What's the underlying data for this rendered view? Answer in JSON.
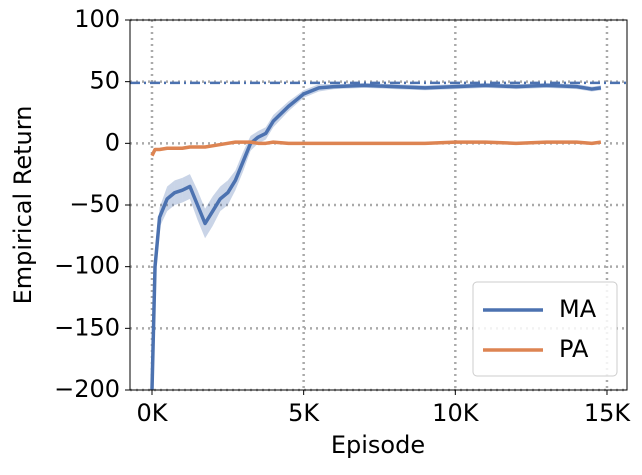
{
  "chart_data": {
    "type": "line",
    "xlabel": "Episode",
    "ylabel": "Empirical Return",
    "x": [
      0,
      100,
      250,
      500,
      750,
      1000,
      1250,
      1500,
      1750,
      2000,
      2250,
      2500,
      2750,
      3000,
      3250,
      3500,
      3750,
      4000,
      4500,
      5000,
      5500,
      6000,
      7000,
      8000,
      9000,
      10000,
      11000,
      12000,
      13000,
      14000,
      14500,
      14800
    ],
    "series": [
      {
        "name": "MA",
        "color": "#4c72b0",
        "values": [
          -200,
          -100,
          -60,
          -45,
          -40,
          -38,
          -35,
          -50,
          -65,
          -55,
          -45,
          -40,
          -30,
          -15,
          0,
          5,
          8,
          18,
          30,
          40,
          45,
          46,
          47,
          46,
          45,
          46,
          47,
          46,
          47,
          46,
          44,
          45
        ],
        "lower": [
          -200,
          -105,
          -68,
          -55,
          -50,
          -48,
          -45,
          -62,
          -77,
          -67,
          -55,
          -50,
          -38,
          -23,
          -6,
          0,
          3,
          13,
          26,
          37,
          42,
          44,
          45,
          44,
          43,
          44,
          45,
          44,
          45,
          44,
          42,
          43
        ],
        "upper": [
          -200,
          -95,
          -52,
          -35,
          -30,
          -28,
          -25,
          -38,
          -53,
          -43,
          -35,
          -30,
          -22,
          -7,
          6,
          10,
          13,
          23,
          34,
          43,
          48,
          48,
          49,
          48,
          47,
          48,
          49,
          48,
          49,
          48,
          46,
          47
        ]
      },
      {
        "name": "PA",
        "color": "#dd8452",
        "values": [
          -10,
          -5,
          -5,
          -4,
          -4,
          -4,
          -3,
          -3,
          -3,
          -2,
          -1,
          0,
          1,
          1,
          1,
          0,
          0,
          1,
          0,
          0,
          0,
          0,
          0,
          0,
          0,
          1,
          1,
          0,
          1,
          1,
          0,
          1
        ]
      }
    ],
    "reference_line": {
      "value": 49,
      "color": "#4c72b0"
    },
    "xlim": [
      -725,
      15660
    ],
    "ylim": [
      -200,
      100
    ],
    "xticks": [
      {
        "value": 0,
        "label": "0K"
      },
      {
        "value": 5000,
        "label": "5K"
      },
      {
        "value": 10000,
        "label": "10K"
      },
      {
        "value": 15000,
        "label": "15K"
      }
    ],
    "yticks": [
      {
        "value": -200,
        "label": "−200"
      },
      {
        "value": -150,
        "label": "−150"
      },
      {
        "value": -100,
        "label": "−100"
      },
      {
        "value": -50,
        "label": "−50"
      },
      0,
      50,
      100
    ],
    "grid": true,
    "legend": "lower right"
  }
}
